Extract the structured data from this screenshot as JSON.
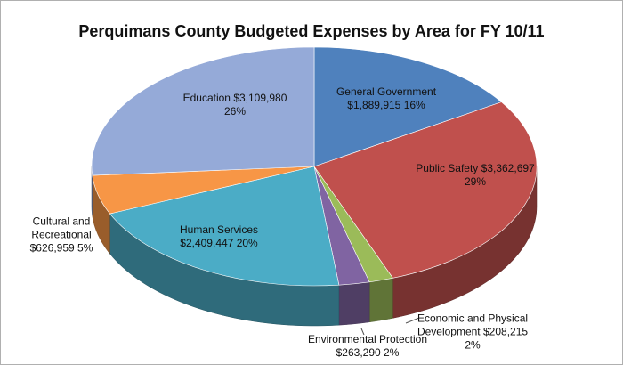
{
  "chart_data": {
    "type": "pie",
    "title": "Perquimans County Budgeted Expenses by Area for FY 10/11",
    "categories": [
      "General Government",
      "Public Safety",
      "Economic and Physical Development",
      "Environmental Protection",
      "Human Services",
      "Cultural and Recreational",
      "Education"
    ],
    "values": [
      1889915,
      3362697,
      208215,
      263290,
      2409447,
      626959,
      3109980
    ],
    "value_labels": [
      "$1,889,915",
      "$3,362,697",
      "$208,215",
      "$263,290",
      "$2,409,447",
      "$626,959",
      "$3,109,980"
    ],
    "percents": [
      {
        "value": 16,
        "label": "16%"
      },
      {
        "value": 29,
        "label": "29%"
      },
      {
        "value": 2,
        "label": "2%"
      },
      {
        "value": 2,
        "label": "2%"
      },
      {
        "value": 20,
        "label": "20%"
      },
      {
        "value": 5,
        "label": "5%"
      },
      {
        "value": 26,
        "label": "26%"
      }
    ],
    "colors": [
      "#4f81bd",
      "#c0504d",
      "#9bbb59",
      "#8064a2",
      "#4bacc6",
      "#f79646",
      "#95aad8"
    ]
  }
}
